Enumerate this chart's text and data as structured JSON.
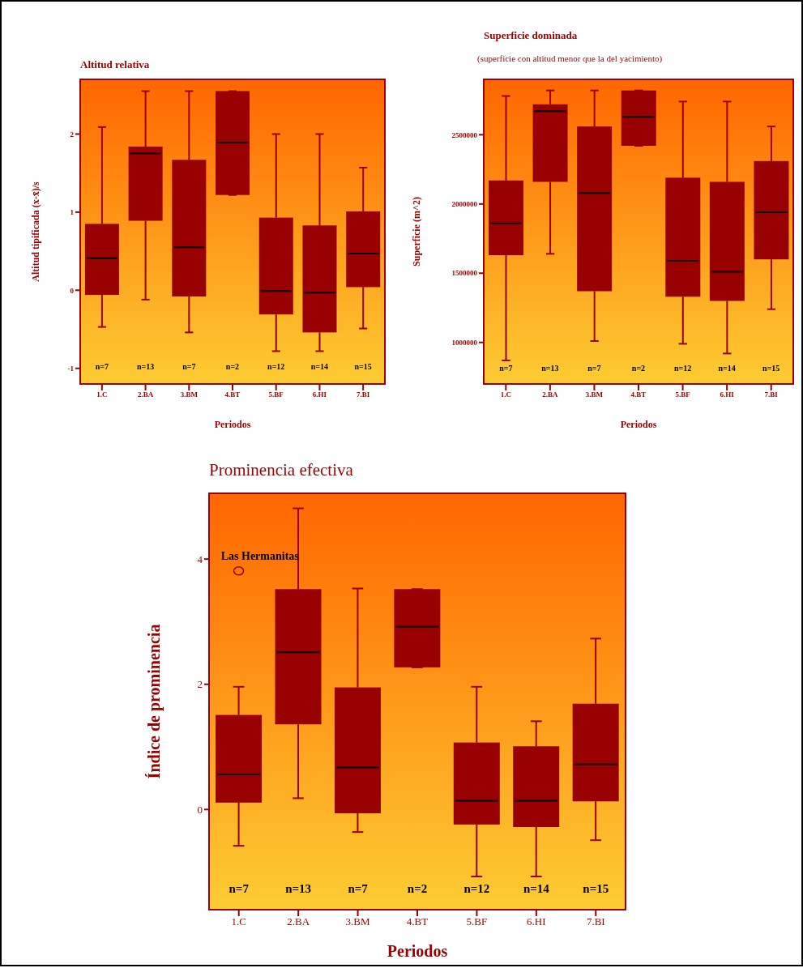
{
  "chart_data": [
    {
      "type": "box",
      "title": "Altitud relativa",
      "xlabel": "Periodos",
      "ylabel": "Altitud tipificada (x-x̄)/s",
      "categories": [
        "1.C",
        "2.BA",
        "3.BM",
        "4.BT",
        "5.BF",
        "6.HI",
        "7.BI"
      ],
      "color": "#990000",
      "ylim": [
        -1.2,
        2.7
      ],
      "yticks": [
        -1,
        0,
        1,
        2
      ],
      "boxes": [
        {
          "low": -0.47,
          "q1": -0.06,
          "median": 0.41,
          "q3": 0.85,
          "high": 2.09
        },
        {
          "low": -0.12,
          "q1": 0.89,
          "median": 1.75,
          "q3": 1.84,
          "high": 2.55
        },
        {
          "low": -0.54,
          "q1": -0.08,
          "median": 0.55,
          "q3": 1.67,
          "high": 2.55
        },
        {
          "low": 1.22,
          "q1": 1.22,
          "median": 1.89,
          "q3": 2.55,
          "high": 2.55
        },
        {
          "low": -0.78,
          "q1": -0.31,
          "median": -0.01,
          "q3": 0.93,
          "high": 2.0
        },
        {
          "low": -0.78,
          "q1": -0.54,
          "median": -0.03,
          "q3": 0.83,
          "high": 2.0
        },
        {
          "low": -0.49,
          "q1": 0.04,
          "median": 0.47,
          "q3": 1.01,
          "high": 1.57
        }
      ],
      "annotations": [
        "n=7",
        "n=13",
        "n=7",
        "n=2",
        "n=12",
        "n=14",
        "n=15"
      ]
    },
    {
      "type": "box",
      "title": "Superficie dominada",
      "subtitle": "(superficie con altitud menor que la del yacimiento)",
      "xlabel": "Periodos",
      "ylabel": "Superficie (m^2)",
      "categories": [
        "1.C",
        "2.BA",
        "3.BM",
        "4.BT",
        "5.BF",
        "6.HI",
        "7.BI"
      ],
      "color": "#990000",
      "ylim": [
        700000,
        2900000
      ],
      "yticks": [
        1000000,
        1500000,
        2000000,
        2500000
      ],
      "boxes": [
        {
          "low": 870000,
          "q1": 1630000,
          "median": 1860000,
          "q3": 2170000,
          "high": 2780000
        },
        {
          "low": 1640000,
          "q1": 2160000,
          "median": 2670000,
          "q3": 2720000,
          "high": 2820000
        },
        {
          "low": 1010000,
          "q1": 1370000,
          "median": 2080000,
          "q3": 2560000,
          "high": 2820000
        },
        {
          "low": 2420000,
          "q1": 2420000,
          "median": 2630000,
          "q3": 2820000,
          "high": 2820000
        },
        {
          "low": 990000,
          "q1": 1330000,
          "median": 1590000,
          "q3": 2190000,
          "high": 2740000
        },
        {
          "low": 920000,
          "q1": 1300000,
          "median": 1510000,
          "q3": 2160000,
          "high": 2740000
        },
        {
          "low": 1240000,
          "q1": 1600000,
          "median": 1940000,
          "q3": 2310000,
          "high": 2560000
        }
      ],
      "annotations": [
        "n=7",
        "n=13",
        "n=7",
        "n=2",
        "n=12",
        "n=14",
        "n=15"
      ]
    },
    {
      "type": "box",
      "title": "Prominencia efectiva",
      "xlabel": "Periodos",
      "ylabel": "Índice de prominencia",
      "categories": [
        "1.C",
        "2.BA",
        "3.BM",
        "4.BT",
        "5.BF",
        "6.HI",
        "7.BI"
      ],
      "color": "#990000",
      "ylim": [
        -1.6,
        5.05
      ],
      "yticks": [
        0,
        2,
        4
      ],
      "boxes": [
        {
          "low": -0.58,
          "q1": 0.11,
          "median": 0.56,
          "q3": 1.51,
          "high": 1.96,
          "outliers": [
            3.81
          ]
        },
        {
          "low": 0.18,
          "q1": 1.36,
          "median": 2.51,
          "q3": 3.52,
          "high": 4.81
        },
        {
          "low": -0.36,
          "q1": -0.06,
          "median": 0.67,
          "q3": 1.95,
          "high": 3.53
        },
        {
          "low": 2.27,
          "q1": 2.27,
          "median": 2.92,
          "q3": 3.52,
          "high": 3.52
        },
        {
          "low": -1.07,
          "q1": -0.24,
          "median": 0.14,
          "q3": 1.07,
          "high": 1.96
        },
        {
          "low": -1.07,
          "q1": -0.28,
          "median": 0.14,
          "q3": 1.01,
          "high": 1.41
        },
        {
          "low": -0.49,
          "q1": 0.13,
          "median": 0.72,
          "q3": 1.69,
          "high": 2.73
        }
      ],
      "annotations": [
        "Las Hermanitas",
        "n=7",
        "n=13",
        "n=7",
        "n=2",
        "n=12",
        "n=14",
        "n=15"
      ]
    }
  ]
}
